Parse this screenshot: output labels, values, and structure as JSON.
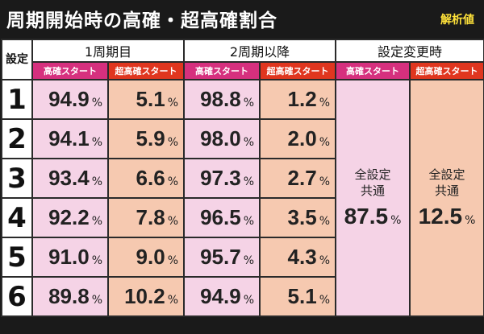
{
  "title": "周期開始時の高確・超高確割合",
  "badge": "解析値",
  "header": {
    "settei": "設定",
    "col1": "1周期目",
    "col2": "2周期以降",
    "col3": "設定変更時",
    "sub_high": "高確スタート",
    "sub_super": "超高確スタート"
  },
  "unit": "%",
  "rows": [
    {
      "setting": "1",
      "c1_high": "94.9",
      "c1_super": "5.1",
      "c2_high": "98.8",
      "c2_super": "1.2"
    },
    {
      "setting": "2",
      "c1_high": "94.1",
      "c1_super": "5.9",
      "c2_high": "98.0",
      "c2_super": "2.0"
    },
    {
      "setting": "3",
      "c1_high": "93.4",
      "c1_super": "6.6",
      "c2_high": "97.3",
      "c2_super": "2.7"
    },
    {
      "setting": "4",
      "c1_high": "92.2",
      "c1_super": "7.8",
      "c2_high": "96.5",
      "c2_super": "3.5"
    },
    {
      "setting": "5",
      "c1_high": "91.0",
      "c1_super": "9.0",
      "c2_high": "95.7",
      "c2_super": "4.3"
    },
    {
      "setting": "6",
      "c1_high": "89.8",
      "c1_super": "10.2",
      "c2_high": "94.9",
      "c2_super": "5.1"
    }
  ],
  "change": {
    "label_line1": "全設定",
    "label_line2": "共通",
    "high": "87.5",
    "super": "12.5"
  },
  "colors": {
    "sub_high": "#d6307e",
    "sub_super": "#e0361f",
    "cell_high": "#f5d3e6",
    "cell_super": "#f6c9b0",
    "badge": "#ffe23a"
  }
}
